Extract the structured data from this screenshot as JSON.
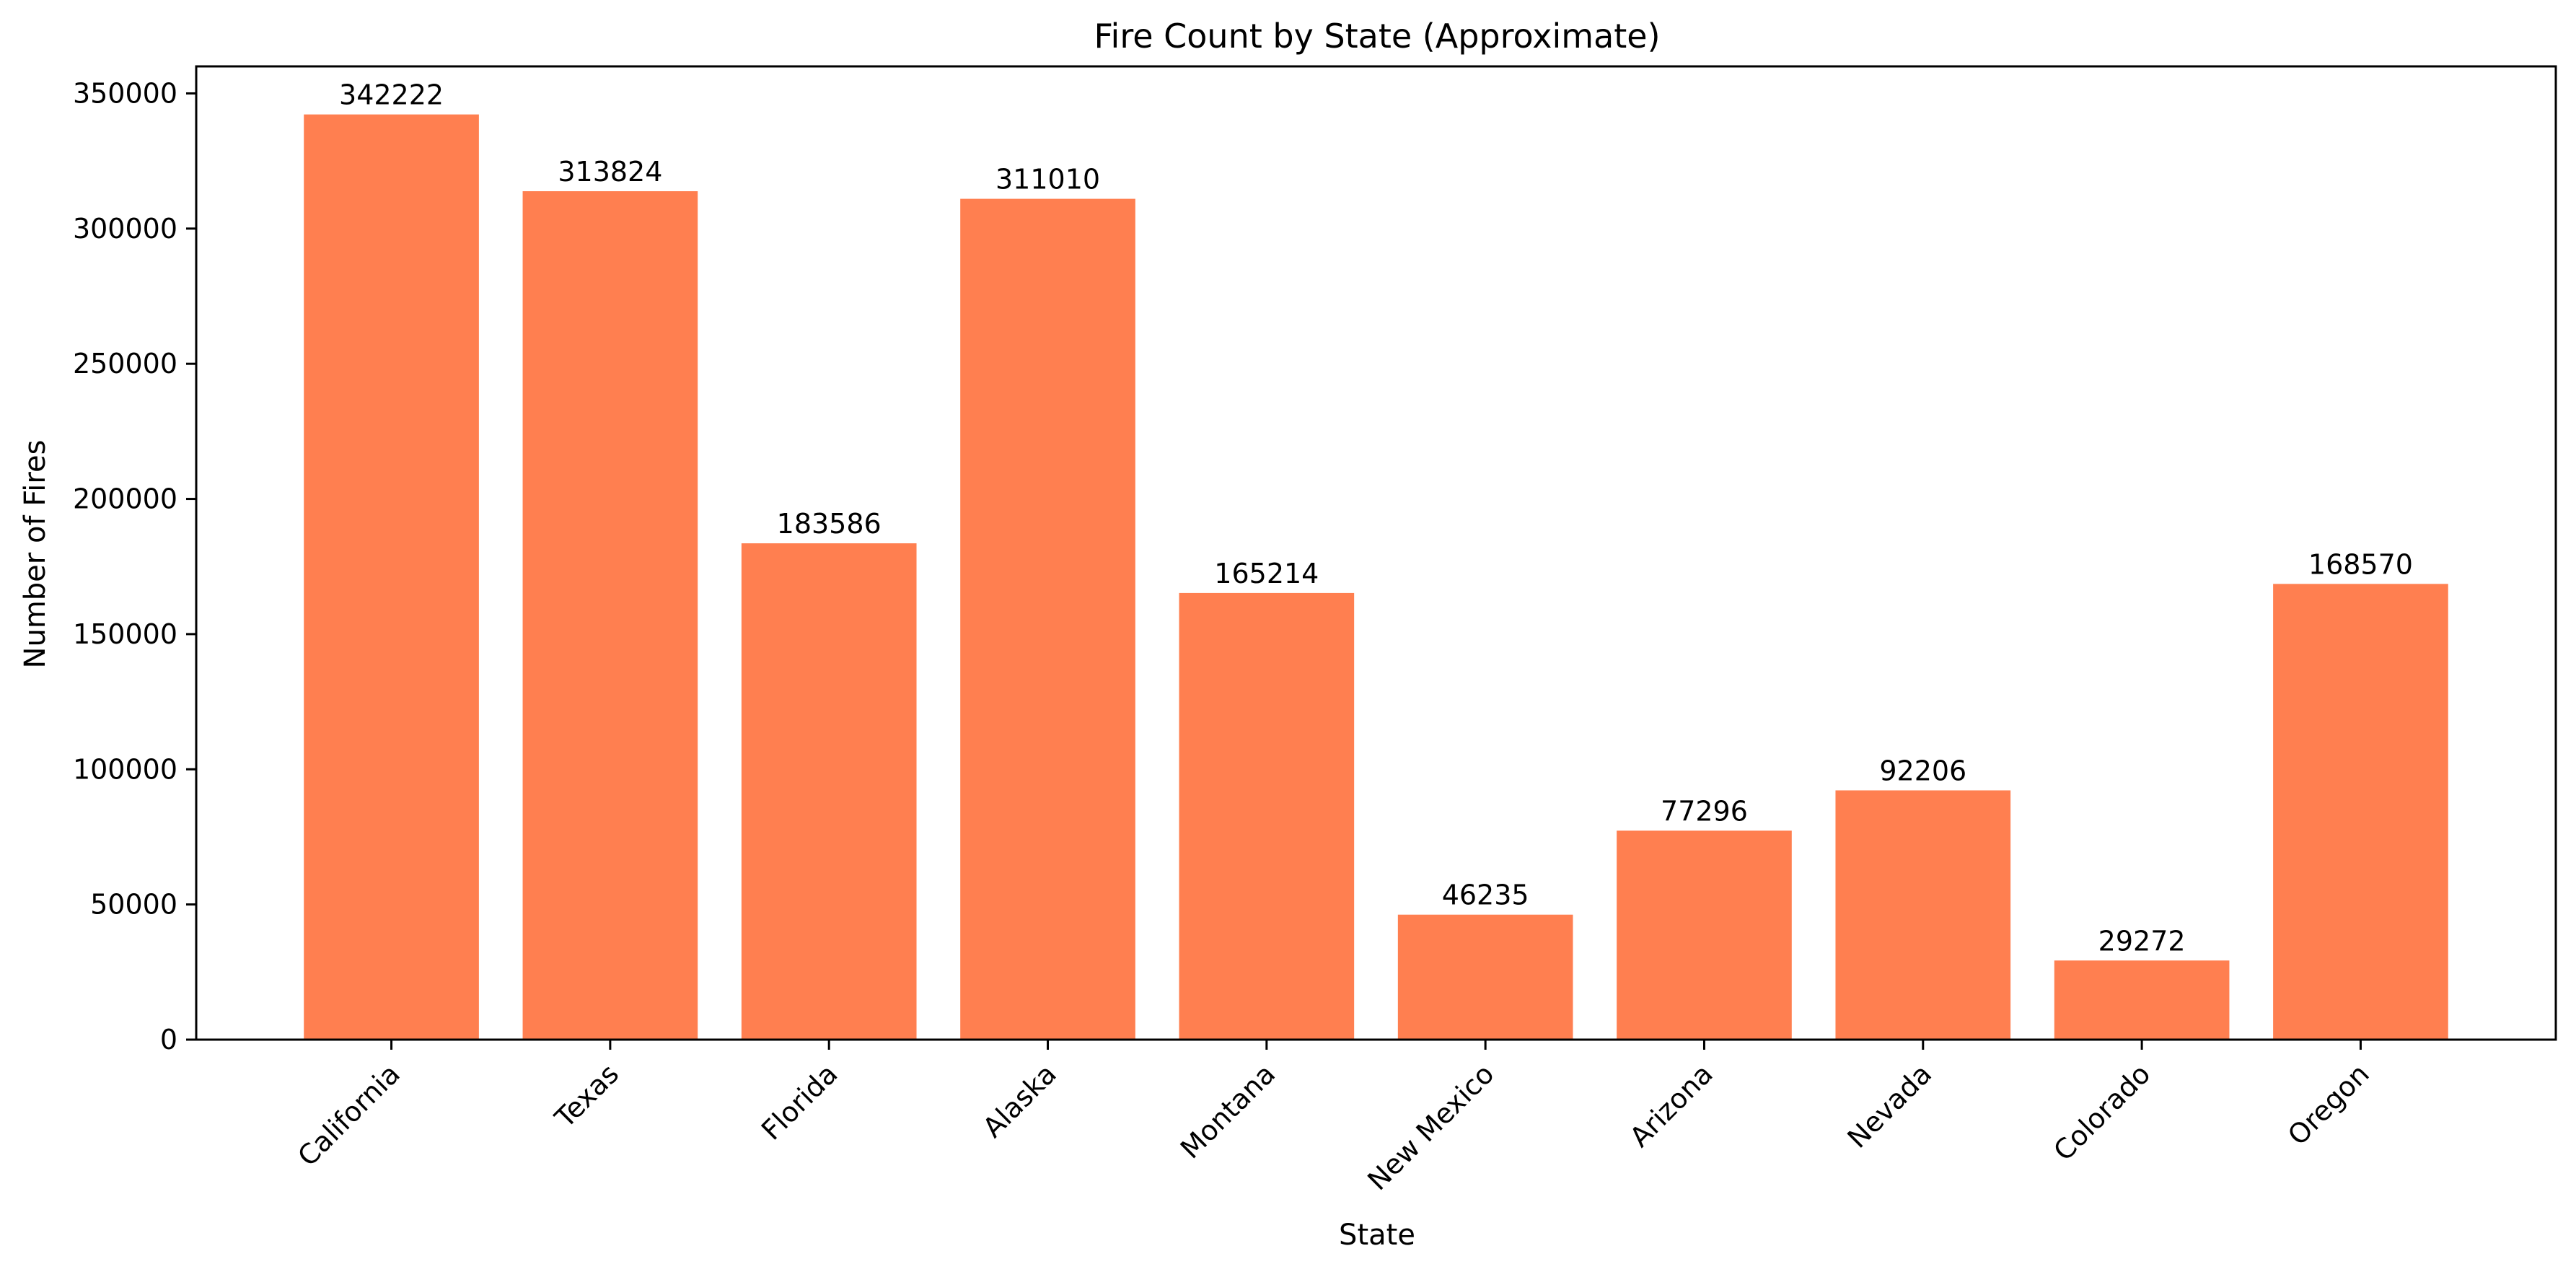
{
  "chart_data": {
    "type": "bar",
    "title": "Fire Count by State (Approximate)",
    "xlabel": "State",
    "ylabel": "Number of Fires",
    "categories": [
      "California",
      "Texas",
      "Florida",
      "Alaska",
      "Montana",
      "New Mexico",
      "Arizona",
      "Nevada",
      "Colorado",
      "Oregon"
    ],
    "values": [
      342222,
      313824,
      183586,
      311010,
      165214,
      46235,
      77296,
      92206,
      29272,
      168570
    ],
    "data_labels": [
      "342222",
      "313824",
      "183586",
      "311010",
      "165214",
      "46235",
      "77296",
      "92206",
      "29272",
      "168570"
    ],
    "ylim": [
      0,
      360000
    ],
    "yticks": [
      0,
      50000,
      100000,
      150000,
      200000,
      250000,
      300000,
      350000
    ],
    "ytick_labels": [
      "0",
      "50000",
      "100000",
      "150000",
      "200000",
      "250000",
      "300000",
      "350000"
    ],
    "bar_color": "#ff7f50",
    "grid": false,
    "legend": "none"
  }
}
